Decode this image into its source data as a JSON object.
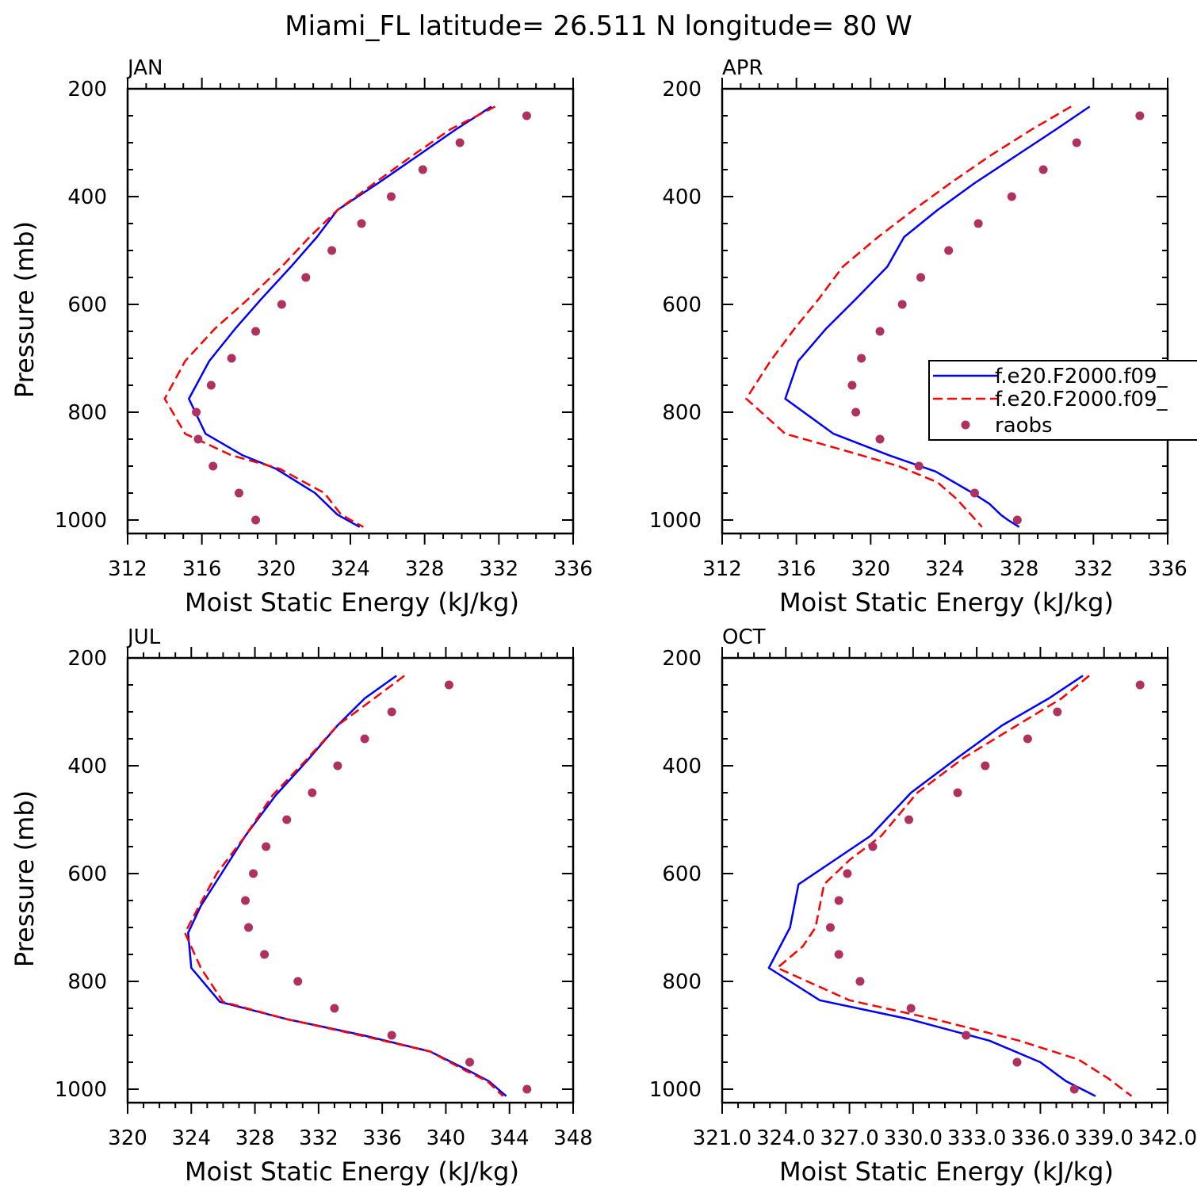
{
  "title": "Miami_FL  latitude= 26.511 N longitude= 80 W",
  "colors": {
    "model1": "#0000ff",
    "model2": "#ff0000",
    "raobs": "#b03060",
    "frame": "#000000"
  },
  "legend": {
    "placement": "right of APR panel, clipped by page edge",
    "entries": [
      {
        "label": "f.e20.F2000.f09_",
        "style": "solid",
        "color": "#0000ff"
      },
      {
        "label": "f.e20.F2000.f09_",
        "style": "dashed",
        "color": "#ff0000"
      },
      {
        "label": "raobs",
        "style": "marker",
        "color": "#b03060"
      }
    ]
  },
  "chart_data": [
    {
      "type": "line",
      "panel": "JAN",
      "xlabel": "Moist Static Energy (kJ/kg)",
      "ylabel": "Pressure (mb)",
      "xlim": [
        312,
        336
      ],
      "ylim": [
        1025,
        200
      ],
      "y_inverted": true,
      "xticks": [
        312,
        316,
        320,
        324,
        328,
        332,
        336
      ],
      "xtick_labels": [
        "312",
        "316",
        "320",
        "324",
        "328",
        "332",
        "336"
      ],
      "yticks": [
        200,
        400,
        600,
        800,
        1000
      ],
      "ytick_labels": [
        "200",
        "400",
        "600",
        "800",
        "1000"
      ],
      "series": [
        {
          "name": "f.e20.F2000.f09_",
          "style": "solid",
          "x": [
            331.6,
            329.7,
            327.6,
            325.5,
            323.3,
            322.2,
            320.8,
            319.2,
            317.8,
            316.4,
            315.3,
            316.2,
            318.2,
            320.0,
            322.1,
            323.3,
            324.5
          ],
          "y": [
            233,
            275,
            325,
            375,
            425,
            475,
            530,
            590,
            645,
            705,
            775,
            840,
            880,
            905,
            950,
            990,
            1013
          ]
        },
        {
          "name": "f.e20.F2000.f09_",
          "style": "dashed",
          "x": [
            331.8,
            329.4,
            327.3,
            325.3,
            323.3,
            321.8,
            320.3,
            318.5,
            316.7,
            315.1,
            314.0,
            315.1,
            317.6,
            320.2,
            322.6,
            323.5,
            324.7
          ],
          "y": [
            233,
            275,
            325,
            375,
            425,
            475,
            530,
            590,
            645,
            705,
            775,
            840,
            880,
            905,
            950,
            990,
            1013
          ]
        },
        {
          "name": "raobs",
          "style": "marker",
          "x": [
            333.5,
            329.9,
            327.9,
            326.2,
            324.6,
            323.0,
            321.6,
            320.3,
            318.9,
            317.6,
            316.5,
            315.7,
            315.8,
            316.6,
            318.0,
            318.9
          ],
          "y": [
            250,
            300,
            350,
            400,
            450,
            500,
            550,
            600,
            650,
            700,
            750,
            800,
            850,
            900,
            950,
            1000
          ]
        }
      ]
    },
    {
      "type": "line",
      "panel": "APR",
      "xlabel": "Moist Static Energy (kJ/kg)",
      "ylabel": "",
      "xlim": [
        312,
        336
      ],
      "ylim": [
        1025,
        200
      ],
      "y_inverted": true,
      "xticks": [
        312,
        316,
        320,
        324,
        328,
        332,
        336
      ],
      "xtick_labels": [
        "312",
        "316",
        "320",
        "324",
        "328",
        "332",
        "336"
      ],
      "yticks": [
        200,
        400,
        600,
        800,
        1000
      ],
      "ytick_labels": [
        "200",
        "400",
        "600",
        "800",
        "1000"
      ],
      "series": [
        {
          "name": "f.e20.F2000.f09_",
          "style": "solid",
          "x": [
            331.8,
            330.0,
            327.8,
            325.6,
            323.6,
            321.8,
            320.9,
            319.2,
            317.6,
            316.1,
            315.4,
            318.0,
            321.0,
            323.5,
            325.5,
            326.4,
            327.0,
            327.4,
            328.0
          ],
          "y": [
            233,
            275,
            325,
            375,
            425,
            475,
            530,
            590,
            645,
            705,
            775,
            840,
            880,
            910,
            950,
            970,
            990,
            1000,
            1013
          ]
        },
        {
          "name": "f.e20.F2000.f09_",
          "style": "dashed",
          "x": [
            330.8,
            328.7,
            326.4,
            324.3,
            322.3,
            320.4,
            318.5,
            317.2,
            315.9,
            314.6,
            313.3,
            315.4,
            318.5,
            321.5,
            323.6,
            324.6,
            325.4,
            326.0
          ],
          "y": [
            233,
            275,
            325,
            375,
            425,
            475,
            530,
            590,
            645,
            705,
            775,
            840,
            870,
            900,
            930,
            960,
            990,
            1013
          ]
        },
        {
          "name": "raobs",
          "style": "marker",
          "x": [
            334.5,
            331.1,
            329.3,
            327.6,
            325.8,
            324.2,
            322.7,
            321.7,
            320.5,
            319.5,
            319.0,
            319.2,
            320.5,
            322.6,
            325.6,
            327.9
          ],
          "y": [
            250,
            300,
            350,
            400,
            450,
            500,
            550,
            600,
            650,
            700,
            750,
            800,
            850,
            900,
            950,
            1000
          ]
        }
      ]
    },
    {
      "type": "line",
      "panel": "JUL",
      "xlabel": "Moist Static Energy (kJ/kg)",
      "ylabel": "Pressure (mb)",
      "xlim": [
        320,
        348
      ],
      "ylim": [
        1025,
        200
      ],
      "y_inverted": true,
      "xticks": [
        320,
        324,
        328,
        332,
        336,
        340,
        344,
        348
      ],
      "xtick_labels": [
        "320",
        "324",
        "328",
        "332",
        "336",
        "340",
        "344",
        "348"
      ],
      "yticks": [
        200,
        400,
        600,
        800,
        1000
      ],
      "ytick_labels": [
        "200",
        "400",
        "600",
        "800",
        "1000"
      ],
      "series": [
        {
          "name": "f.e20.F2000.f09_",
          "style": "solid",
          "x": [
            336.9,
            334.9,
            333.2,
            331.3,
            329.3,
            327.4,
            325.9,
            324.6,
            323.8,
            324.0,
            325.8,
            330.0,
            334.8,
            339.0,
            341.4,
            342.7,
            343.8
          ],
          "y": [
            233,
            275,
            325,
            390,
            455,
            530,
            600,
            660,
            710,
            775,
            838,
            870,
            900,
            930,
            965,
            985,
            1013
          ]
        },
        {
          "name": "f.e20.F2000.f09_",
          "style": "dashed",
          "x": [
            337.4,
            335.5,
            333.2,
            331.2,
            329.1,
            327.4,
            325.6,
            324.5,
            323.6,
            324.6,
            326.0,
            330.0,
            334.6,
            339.0,
            341.2,
            342.6,
            343.6
          ],
          "y": [
            233,
            275,
            325,
            390,
            455,
            530,
            600,
            660,
            710,
            775,
            838,
            870,
            900,
            930,
            965,
            985,
            1013
          ]
        },
        {
          "name": "raobs",
          "style": "marker",
          "x": [
            340.2,
            336.6,
            334.9,
            333.2,
            331.6,
            330.0,
            328.7,
            327.9,
            327.4,
            327.6,
            328.6,
            330.7,
            333.0,
            336.6,
            341.5,
            345.1
          ],
          "y": [
            250,
            300,
            350,
            400,
            450,
            500,
            550,
            600,
            650,
            700,
            750,
            800,
            850,
            900,
            950,
            1000
          ]
        }
      ]
    },
    {
      "type": "line",
      "panel": "OCT",
      "xlabel": "Moist Static Energy (kJ/kg)",
      "ylabel": "",
      "xlim": [
        321.0,
        342.0
      ],
      "ylim": [
        1025,
        200
      ],
      "y_inverted": true,
      "xticks": [
        321.0,
        324.0,
        327.0,
        330.0,
        333.0,
        336.0,
        339.0,
        342.0
      ],
      "xtick_labels": [
        "321.0",
        "324.0",
        "327.0",
        "330.0",
        "333.0",
        "336.0",
        "339.0",
        "342.0"
      ],
      "yticks": [
        200,
        400,
        600,
        800,
        1000
      ],
      "ytick_labels": [
        "200",
        "400",
        "600",
        "800",
        "1000"
      ],
      "series": [
        {
          "name": "f.e20.F2000.f09_",
          "style": "solid",
          "x": [
            338.0,
            336.4,
            334.2,
            332.1,
            329.9,
            328.0,
            326.3,
            324.6,
            324.2,
            323.2,
            325.6,
            329.8,
            333.6,
            336.0,
            337.2,
            338.6
          ],
          "y": [
            233,
            275,
            325,
            385,
            450,
            530,
            575,
            620,
            700,
            775,
            835,
            870,
            910,
            950,
            985,
            1013
          ]
        },
        {
          "name": "f.e20.F2000.f09_",
          "style": "dashed",
          "x": [
            338.3,
            337.0,
            334.9,
            332.4,
            330.2,
            328.5,
            327.0,
            325.8,
            325.4,
            324.8,
            323.6,
            327.0,
            331.0,
            335.0,
            337.8,
            339.2,
            340.3
          ],
          "y": [
            233,
            275,
            325,
            385,
            450,
            530,
            575,
            620,
            700,
            735,
            775,
            835,
            870,
            910,
            945,
            980,
            1013
          ]
        },
        {
          "name": "raobs",
          "style": "marker",
          "x": [
            340.7,
            336.8,
            335.4,
            333.4,
            332.1,
            329.8,
            328.1,
            326.9,
            326.5,
            326.1,
            326.5,
            327.5,
            329.9,
            332.5,
            334.9,
            337.6
          ],
          "y": [
            250,
            300,
            350,
            400,
            450,
            500,
            550,
            600,
            650,
            700,
            750,
            800,
            850,
            900,
            950,
            1000
          ]
        }
      ]
    }
  ]
}
